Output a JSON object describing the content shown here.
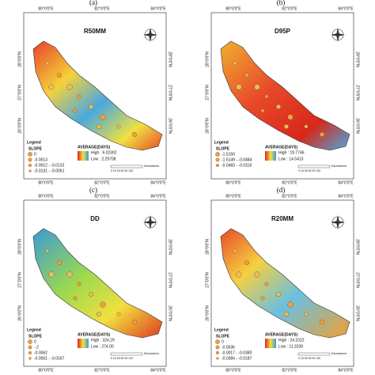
{
  "panels": [
    {
      "label": "(a)",
      "title": "R50MM",
      "lon": [
        "80°0'0\"E",
        "82°0'0\"E",
        "84°0'0\"E"
      ],
      "lat": [
        "28°0'0\"N",
        "27°0'0\"N",
        "26°0'0\"N"
      ],
      "legend_title": "Legend",
      "slope_title": "SLOPE",
      "slope_items": [
        "0",
        "-0.0013",
        "-0.0012 - -0.0132",
        "-0.0131 - -0.0051"
      ],
      "average_title": "AVERAGE(DAYS)",
      "high": "High : 6.02302",
      "low": "Low : 2.29708",
      "scale": "0 15 30 60 90 120",
      "units": "Kilometers"
    },
    {
      "label": "(b)",
      "title": "D95P",
      "lon": [
        "80°0'0\"E",
        "82°0'0\"E",
        "84°0'0\"E"
      ],
      "lat": [
        "28°0'0\"N",
        "27°0'0\"N",
        "26°0'0\"N"
      ],
      "legend_title": "Legend",
      "slope_title": "SLOPE",
      "slope_items": [
        "-1.5150",
        "-1.5149 - -0.0484",
        "-0.0483 - -0.0118"
      ],
      "average_title": "AVERAGE(DAYS)",
      "high": "High : 19.7746",
      "low": "Low : 14.5413",
      "scale": "0 15 30 60 90 120",
      "units": "Kilometers"
    },
    {
      "label": "(c)",
      "title": "DD",
      "lon": [
        "80°0'0\"E",
        "82°0'0\"E",
        "84°0'0\"E"
      ],
      "lat": [
        "28°0'0\"N",
        "27°0'0\"N",
        "26°0'0\"N"
      ],
      "legend_title": "Legend",
      "slope_title": "SLOPE",
      "slope_items": [
        "0",
        "- 2",
        "-0.0062",
        "-0.0061 - -0.0167"
      ],
      "average_title": "AVERAGE(DAYS)",
      "high": "High : 324.29",
      "low": "Low : 274.00",
      "scale": "0 15 30 60 90 120",
      "units": "Kilometers"
    },
    {
      "label": "(d)",
      "title": "R20MM",
      "lon": [
        "80°0'0\"E",
        "82°0'0\"E",
        "84°0'0\"E"
      ],
      "lat": [
        "28°0'0\"N",
        "27°0'0\"N",
        "26°0'0\"N"
      ],
      "legend_title": "Legend",
      "slope_title": "SLOPE",
      "slope_items": [
        "0",
        "-0.0036",
        "-0.0017 - -0.0380",
        "-0.0384 - -0.0187"
      ],
      "average_title": "AVERAGE(DAYS)",
      "high": "High : 24.1022",
      "low": "Low : 11.3239",
      "scale": "0 15 30 60 90 120",
      "units": "Kilometers"
    }
  ]
}
